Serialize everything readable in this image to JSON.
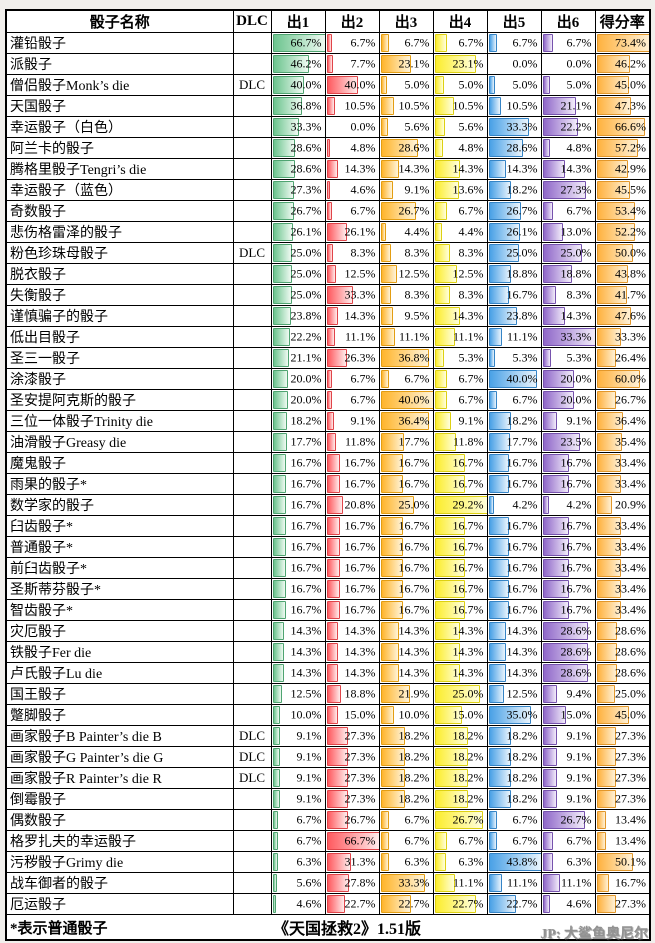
{
  "chart_data": {
    "type": "table",
    "title": "《天国拯救2》1.51版",
    "columns": [
      "骰子名称",
      "DLC",
      "出1",
      "出2",
      "出3",
      "出4",
      "出5",
      "出6",
      "得分率"
    ],
    "value_format": "percent, 1 decimal",
    "bar_scaling": "bar width = value / column max",
    "footnote": "*表示普通骰子",
    "watermark": "JP: 大鲨鱼奥尼尔",
    "bar_colors": [
      {
        "fill": "#6cc48e",
        "border": "#4fa471",
        "fade": "#effaf2"
      },
      {
        "fill": "#ff5a5f",
        "border": "#e04449",
        "fade": "#ffecec"
      },
      {
        "fill": "#ffb52c",
        "border": "#e39d12",
        "fade": "#fff4d9"
      },
      {
        "fill": "#fced2d",
        "border": "#ddd012",
        "fade": "#ffffdd"
      },
      {
        "fill": "#4aa1e6",
        "border": "#3584c6",
        "fade": "#e9f4fd"
      },
      {
        "fill": "#9068c9",
        "border": "#7652ad",
        "fade": "#f2ecfa"
      },
      {
        "fill": "#ffb23f",
        "border": "#e2972a",
        "fade": "#fff1d6"
      }
    ],
    "rows": [
      {
        "name": "灌铅骰子",
        "dlc": "",
        "values": [
          66.7,
          6.7,
          6.7,
          6.7,
          6.7,
          6.7,
          73.4
        ]
      },
      {
        "name": "派骰子",
        "dlc": "",
        "values": [
          46.2,
          7.7,
          23.1,
          23.1,
          0.0,
          0.0,
          46.2
        ]
      },
      {
        "name": "僧侣骰子Monk’s die",
        "dlc": "DLC",
        "values": [
          40.0,
          40.0,
          5.0,
          5.0,
          5.0,
          5.0,
          45.0
        ]
      },
      {
        "name": "天国骰子",
        "dlc": "",
        "values": [
          36.8,
          10.5,
          10.5,
          10.5,
          10.5,
          21.1,
          47.3
        ]
      },
      {
        "name": "幸运骰子（白色）",
        "dlc": "",
        "values": [
          33.3,
          0.0,
          5.6,
          5.6,
          33.3,
          22.2,
          66.6
        ]
      },
      {
        "name": "阿兰卡的骰子",
        "dlc": "",
        "values": [
          28.6,
          4.8,
          28.6,
          4.8,
          28.6,
          4.8,
          57.2
        ]
      },
      {
        "name": "腾格里骰子Tengri’s die",
        "dlc": "",
        "values": [
          28.6,
          14.3,
          14.3,
          14.3,
          14.3,
          14.3,
          42.9
        ]
      },
      {
        "name": "幸运骰子（蓝色）",
        "dlc": "",
        "values": [
          27.3,
          4.6,
          9.1,
          13.6,
          18.2,
          27.3,
          45.5
        ]
      },
      {
        "name": "奇数骰子",
        "dlc": "",
        "values": [
          26.7,
          6.7,
          26.7,
          6.7,
          26.7,
          6.7,
          53.4
        ]
      },
      {
        "name": "悲伤格雷泽的骰子",
        "dlc": "",
        "values": [
          26.1,
          26.1,
          4.4,
          4.4,
          26.1,
          13.0,
          52.2
        ]
      },
      {
        "name": "粉色珍珠母骰子",
        "dlc": "DLC",
        "values": [
          25.0,
          8.3,
          8.3,
          8.3,
          25.0,
          25.0,
          50.0
        ]
      },
      {
        "name": "脱衣骰子",
        "dlc": "",
        "values": [
          25.0,
          12.5,
          12.5,
          12.5,
          18.8,
          18.8,
          43.8
        ]
      },
      {
        "name": "失衡骰子",
        "dlc": "",
        "values": [
          25.0,
          33.3,
          8.3,
          8.3,
          16.7,
          8.3,
          41.7
        ]
      },
      {
        "name": "谨慎骗子的骰子",
        "dlc": "",
        "values": [
          23.8,
          14.3,
          9.5,
          14.3,
          23.8,
          14.3,
          47.6
        ]
      },
      {
        "name": "低出目骰子",
        "dlc": "",
        "values": [
          22.2,
          11.1,
          11.1,
          11.1,
          11.1,
          33.3,
          33.3
        ]
      },
      {
        "name": "圣三一骰子",
        "dlc": "",
        "values": [
          21.1,
          26.3,
          36.8,
          5.3,
          5.3,
          5.3,
          26.4
        ]
      },
      {
        "name": "涂漆骰子",
        "dlc": "",
        "values": [
          20.0,
          6.7,
          6.7,
          6.7,
          40.0,
          20.0,
          60.0
        ]
      },
      {
        "name": "圣安提阿克斯的骰子",
        "dlc": "",
        "values": [
          20.0,
          6.7,
          40.0,
          6.7,
          6.7,
          20.0,
          26.7
        ]
      },
      {
        "name": "三位一体骰子Trinity die",
        "dlc": "",
        "values": [
          18.2,
          9.1,
          36.4,
          9.1,
          18.2,
          9.1,
          36.4
        ]
      },
      {
        "name": "油滑骰子Greasy die",
        "dlc": "",
        "values": [
          17.7,
          11.8,
          17.7,
          11.8,
          17.7,
          23.5,
          35.4
        ]
      },
      {
        "name": "魔鬼骰子",
        "dlc": "",
        "values": [
          16.7,
          16.7,
          16.7,
          16.7,
          16.7,
          16.7,
          33.4
        ]
      },
      {
        "name": "雨果的骰子*",
        "dlc": "",
        "values": [
          16.7,
          16.7,
          16.7,
          16.7,
          16.7,
          16.7,
          33.4
        ]
      },
      {
        "name": "数学家的骰子",
        "dlc": "",
        "values": [
          16.7,
          20.8,
          25.0,
          29.2,
          4.2,
          4.2,
          20.9
        ]
      },
      {
        "name": "臼齿骰子*",
        "dlc": "",
        "values": [
          16.7,
          16.7,
          16.7,
          16.7,
          16.7,
          16.7,
          33.4
        ]
      },
      {
        "name": "普通骰子*",
        "dlc": "",
        "values": [
          16.7,
          16.7,
          16.7,
          16.7,
          16.7,
          16.7,
          33.4
        ]
      },
      {
        "name": "前臼齿骰子*",
        "dlc": "",
        "values": [
          16.7,
          16.7,
          16.7,
          16.7,
          16.7,
          16.7,
          33.4
        ]
      },
      {
        "name": "圣斯蒂芬骰子*",
        "dlc": "",
        "values": [
          16.7,
          16.7,
          16.7,
          16.7,
          16.7,
          16.7,
          33.4
        ]
      },
      {
        "name": "智齿骰子*",
        "dlc": "",
        "values": [
          16.7,
          16.7,
          16.7,
          16.7,
          16.7,
          16.7,
          33.4
        ]
      },
      {
        "name": "灾厄骰子",
        "dlc": "",
        "values": [
          14.3,
          14.3,
          14.3,
          14.3,
          14.3,
          28.6,
          28.6
        ]
      },
      {
        "name": "铁骰子Fer die",
        "dlc": "",
        "values": [
          14.3,
          14.3,
          14.3,
          14.3,
          14.3,
          28.6,
          28.6
        ]
      },
      {
        "name": "卢氏骰子Lu die",
        "dlc": "",
        "values": [
          14.3,
          14.3,
          14.3,
          14.3,
          14.3,
          28.6,
          28.6
        ]
      },
      {
        "name": "国王骰子",
        "dlc": "",
        "values": [
          12.5,
          18.8,
          21.9,
          25.0,
          12.5,
          9.4,
          25.0
        ]
      },
      {
        "name": "蹩脚骰子",
        "dlc": "",
        "values": [
          10.0,
          15.0,
          10.0,
          15.0,
          35.0,
          15.0,
          45.0
        ]
      },
      {
        "name": "画家骰子B Painter’s die B",
        "dlc": "DLC",
        "values": [
          9.1,
          27.3,
          18.2,
          18.2,
          18.2,
          9.1,
          27.3
        ]
      },
      {
        "name": "画家骰子G Painter’s die G",
        "dlc": "DLC",
        "values": [
          9.1,
          27.3,
          18.2,
          18.2,
          18.2,
          9.1,
          27.3
        ]
      },
      {
        "name": "画家骰子R Painter’s die R",
        "dlc": "DLC",
        "values": [
          9.1,
          27.3,
          18.2,
          18.2,
          18.2,
          9.1,
          27.3
        ]
      },
      {
        "name": "倒霉骰子",
        "dlc": "",
        "values": [
          9.1,
          27.3,
          18.2,
          18.2,
          18.2,
          9.1,
          27.3
        ]
      },
      {
        "name": "偶数骰子",
        "dlc": "",
        "values": [
          6.7,
          26.7,
          6.7,
          26.7,
          6.7,
          26.7,
          13.4
        ]
      },
      {
        "name": "格罗扎夫的幸运骰子",
        "dlc": "",
        "values": [
          6.7,
          66.7,
          6.7,
          6.7,
          6.7,
          6.7,
          13.4
        ]
      },
      {
        "name": "污秽骰子Grimy die",
        "dlc": "",
        "values": [
          6.3,
          31.3,
          6.3,
          6.3,
          43.8,
          6.3,
          50.1
        ]
      },
      {
        "name": "战车御者的骰子",
        "dlc": "",
        "values": [
          5.6,
          27.8,
          33.3,
          11.1,
          11.1,
          11.1,
          16.7
        ]
      },
      {
        "name": "厄运骰子",
        "dlc": "",
        "values": [
          4.6,
          22.7,
          22.7,
          22.7,
          22.7,
          4.6,
          27.3
        ]
      }
    ]
  }
}
